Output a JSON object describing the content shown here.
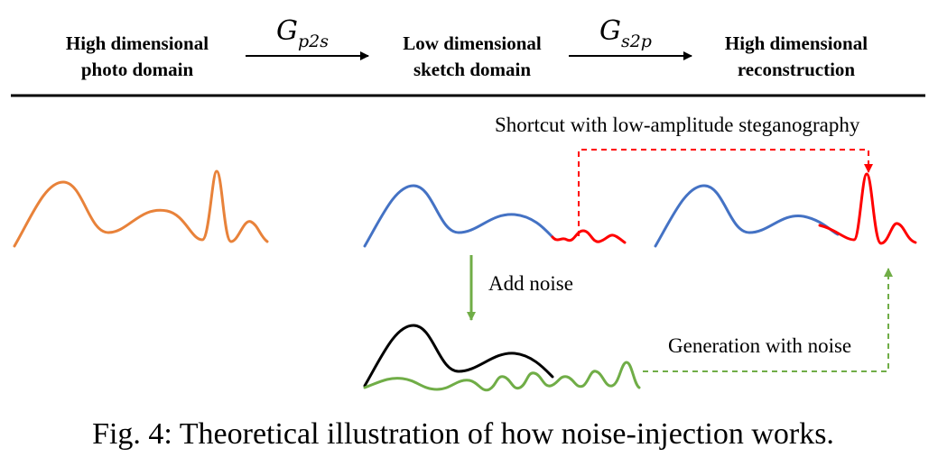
{
  "header": {
    "col1_line1": "High dimensional",
    "col1_line2": "photo domain",
    "col2_line1": "Low dimensional",
    "col2_line2": "sketch domain",
    "col3_line1": "High dimensional",
    "col3_line2": "reconstruction",
    "arrow1_symbol": "G",
    "arrow1_sub": "p2s",
    "arrow2_symbol": "G",
    "arrow2_sub": "s2p"
  },
  "labels": {
    "shortcut": "Shortcut with low-amplitude steganography",
    "add_noise": "Add noise",
    "generation": "Generation with noise"
  },
  "caption": "Fig. 4: Theoretical illustration of how noise-injection works.",
  "colors": {
    "photo_curve": "#E8823A",
    "sketch_curve": "#4472C4",
    "steganography": "#FF0000",
    "noise": "#70AD47",
    "noisy_sketch": "#000000"
  }
}
